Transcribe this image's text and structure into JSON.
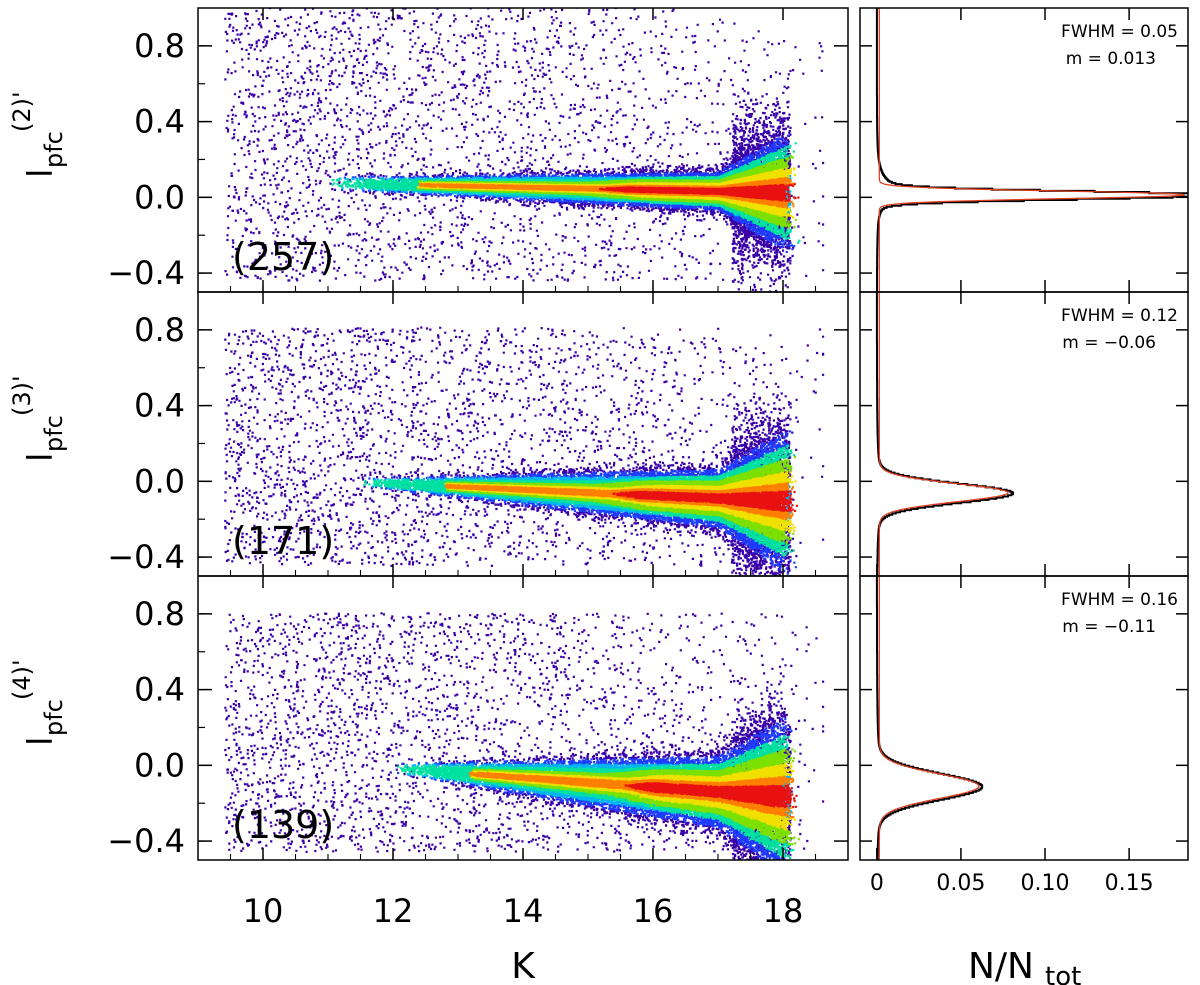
{
  "colors": {
    "density": [
      "#3a00a8",
      "#1e3cff",
      "#00b4f0",
      "#00e0a0",
      "#7ce000",
      "#f0e000",
      "#ff8000",
      "#e81010"
    ],
    "fit_line": "#e04020",
    "histogram": "#000000"
  },
  "chart_data": [
    {
      "type": "heatmap",
      "xlabel": "K",
      "ylabel": "l_pfc^(2)'",
      "ylabel_main": "l",
      "ylabel_sub": "pfc",
      "ylabel_sup": "(2)'",
      "xlim": [
        9.0,
        19.0
      ],
      "ylim": [
        -0.5,
        1.0
      ],
      "xticks": [
        "10",
        "12",
        "14",
        "16",
        "18"
      ],
      "yticks": [
        "0.8",
        "0.4",
        "0.0",
        "−0.4"
      ],
      "ytick_values": [
        0.8,
        0.4,
        0.0,
        -0.4
      ],
      "count_label": "(257)",
      "locus": {
        "start_k": 11.0,
        "end_k": 18.0,
        "center_start": 0.08,
        "center_end": 0.03,
        "width_start": 0.015,
        "width_end": 0.05,
        "scatter_amp": 0.35
      }
    },
    {
      "type": "heatmap",
      "xlabel": "K",
      "ylabel": "l_pfc^(3)'",
      "ylabel_main": "l",
      "ylabel_sub": "pfc",
      "ylabel_sup": "(3)'",
      "xlim": [
        9.0,
        19.0
      ],
      "ylim": [
        -0.5,
        1.0
      ],
      "xticks": [
        "10",
        "12",
        "14",
        "16",
        "18"
      ],
      "yticks": [
        "0.8",
        "0.4",
        "0.0",
        "−0.4"
      ],
      "ytick_values": [
        0.8,
        0.4,
        0.0,
        -0.4
      ],
      "count_label": "(171)",
      "locus": {
        "start_k": 11.5,
        "end_k": 18.0,
        "center_start": 0.0,
        "center_end": -0.1,
        "width_start": 0.01,
        "width_end": 0.08,
        "scatter_amp": 0.3
      }
    },
    {
      "type": "heatmap",
      "xlabel": "K",
      "ylabel": "l_pfc^(4)'",
      "ylabel_main": "l",
      "ylabel_sub": "pfc",
      "ylabel_sup": "(4)'",
      "xlim": [
        9.0,
        19.0
      ],
      "ylim": [
        -0.5,
        1.0
      ],
      "xticks": [
        "10",
        "12",
        "14",
        "16",
        "18"
      ],
      "yticks": [
        "0.8",
        "0.4",
        "0.0",
        "−0.4"
      ],
      "ytick_values": [
        0.8,
        0.4,
        0.0,
        -0.4
      ],
      "count_label": "(139)",
      "locus": {
        "start_k": 12.0,
        "end_k": 18.0,
        "center_start": -0.01,
        "center_end": -0.16,
        "width_start": 0.012,
        "width_end": 0.1,
        "scatter_amp": 0.3
      }
    },
    {
      "type": "line",
      "orientation": "horizontal-histogram",
      "xlabel": "N/N_tot",
      "xlabel_main": "N/N",
      "xlabel_sub": "tot",
      "xlim": [
        -0.01,
        0.185
      ],
      "xticks": [
        "0",
        "0.05",
        "0.10",
        "0.15"
      ],
      "xtick_values": [
        0,
        0.05,
        0.1,
        0.15
      ],
      "panels": [
        {
          "fwhm": "FWHM = 0.05",
          "m": "m = 0.013",
          "peak_y": 0.013,
          "peak_n": 0.178,
          "sigma": 0.021,
          "wing": 0.06
        },
        {
          "fwhm": "FWHM = 0.12",
          "m": "m = −0.06",
          "peak_y": -0.06,
          "peak_n": 0.075,
          "sigma": 0.05,
          "wing": 0.0
        },
        {
          "fwhm": "FWHM = 0.16",
          "m": "m = −0.11",
          "peak_y": -0.11,
          "peak_n": 0.058,
          "sigma": 0.068,
          "wing": 0.0
        }
      ]
    }
  ]
}
